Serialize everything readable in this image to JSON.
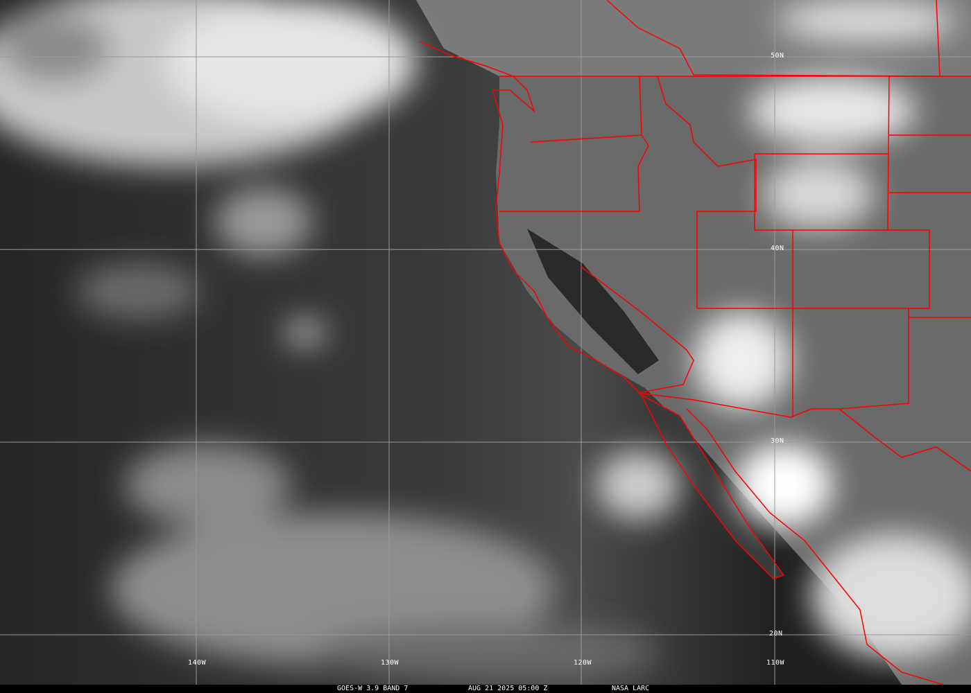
{
  "caption": {
    "satellite_band": "GOES-W 3.9 BAND 7",
    "datetime": "AUG 21 2025 05:00 Z",
    "source": "NASA LARC"
  },
  "grid": {
    "latitude_labels": [
      "50N",
      "40N",
      "30N",
      "20N"
    ],
    "longitude_labels": [
      "140W",
      "130W",
      "120W",
      "110W"
    ]
  },
  "colors": {
    "borders": "#ff0000",
    "grid": "#9a9a9a",
    "caption_bg": "#000000"
  }
}
